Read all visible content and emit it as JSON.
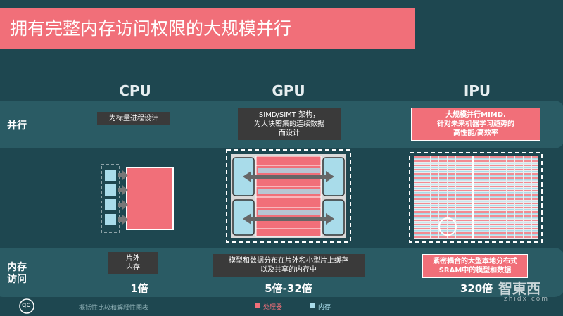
{
  "header": {
    "title": "拥有完整内存访问权限的大规模并行"
  },
  "columns": [
    "CPU",
    "GPU",
    "IPU"
  ],
  "parallel": {
    "label": "并行",
    "cells": [
      [
        "为标量进程设计"
      ],
      [
        "SIMD/SIMT 架构，",
        "为大块密集的连续数据",
        "而设计"
      ],
      [
        "大规模并行MIMD.",
        "针对未来机器学习趋势的",
        "高性能/高效率"
      ]
    ]
  },
  "memory": {
    "label": [
      "内存",
      "访问"
    ],
    "cells": [
      [
        "片外",
        "内存"
      ],
      [
        "模型和数据分布在片外和小型片上缓存",
        "以及共享的内存中"
      ],
      [
        "紧密耦合的大型本地分布式",
        "SRAM中的模型和数据"
      ]
    ]
  },
  "speedups": [
    "1倍",
    "5倍-32倍",
    "320倍"
  ],
  "footer": {
    "logo": "gc",
    "caption": "概括性比较和解释性图表",
    "legend": [
      "处理器",
      "内存"
    ]
  },
  "watermark": {
    "brand": "智東西",
    "url": "zhidx.com"
  }
}
